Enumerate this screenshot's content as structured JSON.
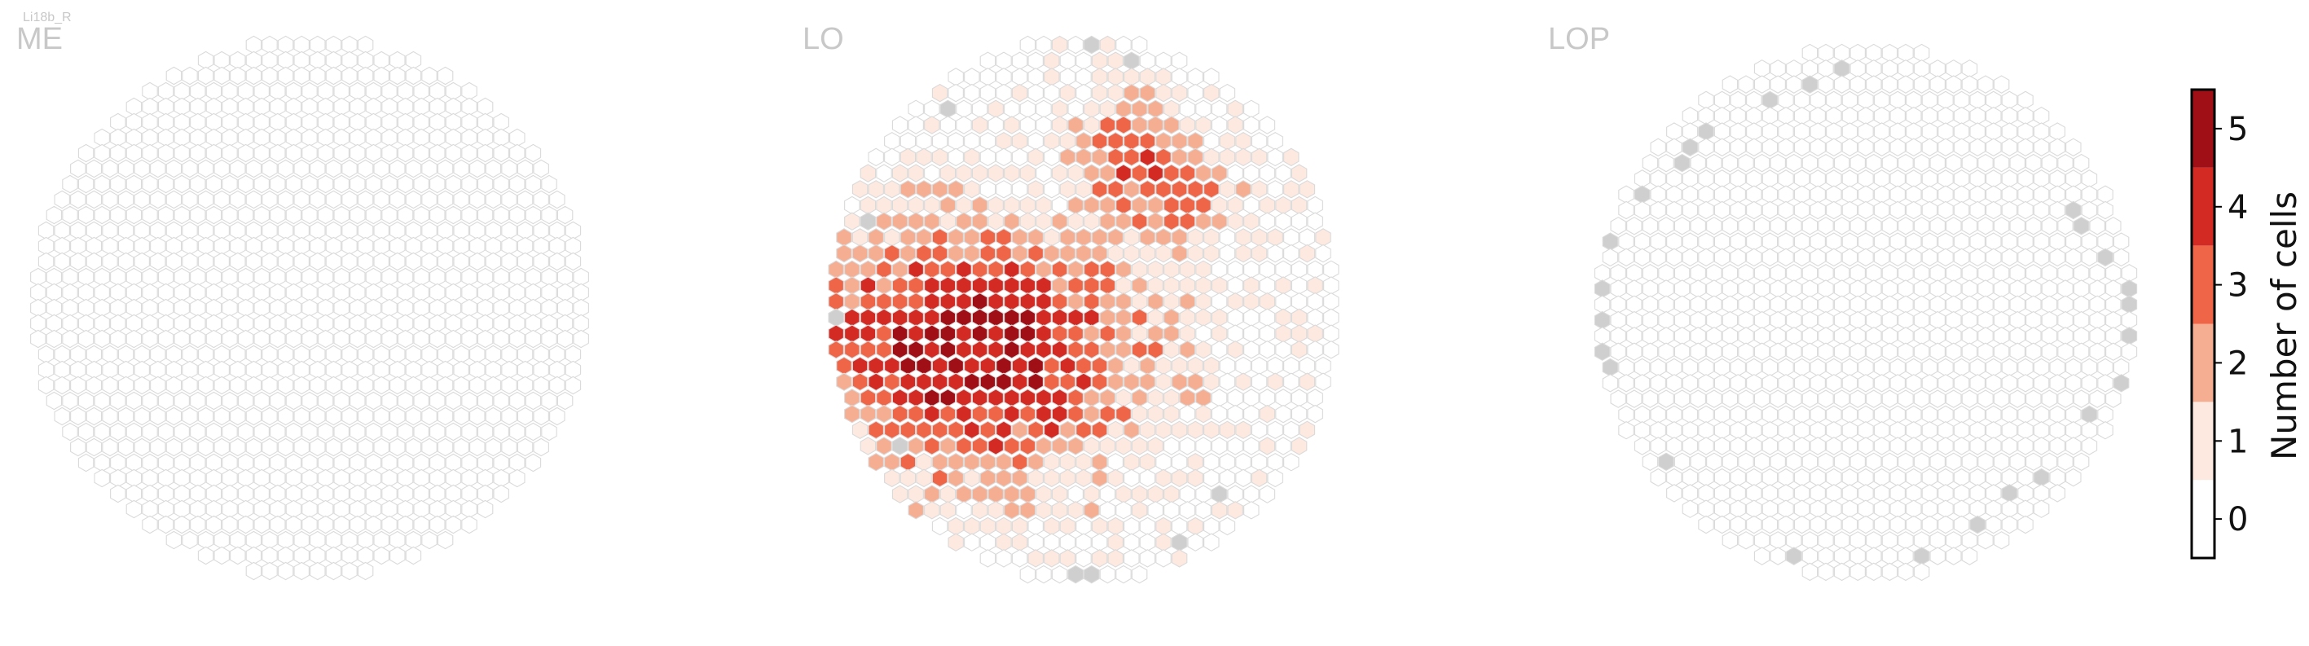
{
  "chart_data": {
    "type": "heatmap",
    "cell_type_label": "Li18b_R",
    "colors": {
      "empty_fill": "#ffffff",
      "grid_stroke": "#dadada",
      "edge_fill": "#cfcfcf",
      "cmap": [
        "#ffffff",
        "#fde9e0",
        "#f6ae93",
        "#ef6548",
        "#d42a24",
        "#a10f16"
      ]
    },
    "colorbar": {
      "label": "Number of cells",
      "ticks": [
        0,
        1,
        2,
        3,
        4,
        5
      ],
      "range": [
        0,
        5
      ]
    },
    "panels": [
      {
        "title": "ME",
        "n_rows": 35,
        "max_width": 35,
        "edge_cells": [],
        "hot_spot": null
      },
      {
        "title": "LO",
        "n_rows": 34,
        "max_width": 32,
        "edge_cells": [
          [
            0,
            16
          ],
          [
            1,
            22
          ],
          [
            3,
            4
          ],
          [
            4,
            3
          ],
          [
            11,
            1
          ],
          [
            17,
            0
          ],
          [
            25,
            2
          ],
          [
            26,
            29
          ],
          [
            28,
            27
          ],
          [
            31,
            26
          ],
          [
            32,
            28
          ],
          [
            33,
            10
          ],
          [
            33,
            12
          ],
          [
            33,
            14
          ],
          [
            33,
            16
          ],
          [
            33,
            18
          ],
          [
            32,
            23
          ]
        ],
        "hot_spot": {
          "row": 19,
          "col": 8,
          "peak": 5
        }
      },
      {
        "title": "LOP",
        "n_rows": 34,
        "max_width": 34,
        "edge_cells": [
          [
            0,
            14
          ],
          [
            0,
            18
          ],
          [
            1,
            12
          ],
          [
            1,
            20
          ],
          [
            2,
            9
          ],
          [
            3,
            6
          ],
          [
            4,
            5
          ],
          [
            5,
            3
          ],
          [
            6,
            3
          ],
          [
            7,
            2
          ],
          [
            9,
            1
          ],
          [
            10,
            31
          ],
          [
            11,
            31
          ],
          [
            12,
            0
          ],
          [
            13,
            32
          ],
          [
            15,
            0
          ],
          [
            15,
            33
          ],
          [
            16,
            33
          ],
          [
            17,
            0
          ],
          [
            18,
            33
          ],
          [
            19,
            0
          ],
          [
            20,
            0
          ],
          [
            21,
            33
          ],
          [
            23,
            32
          ],
          [
            25,
            31
          ],
          [
            26,
            1
          ],
          [
            27,
            30
          ],
          [
            28,
            29
          ],
          [
            29,
            2
          ],
          [
            30,
            28
          ],
          [
            31,
            3
          ],
          [
            32,
            5
          ],
          [
            33,
            10
          ],
          [
            33,
            12
          ],
          [
            33,
            15
          ],
          [
            33,
            19
          ],
          [
            32,
            24
          ]
        ],
        "hot_spot": null
      }
    ]
  }
}
